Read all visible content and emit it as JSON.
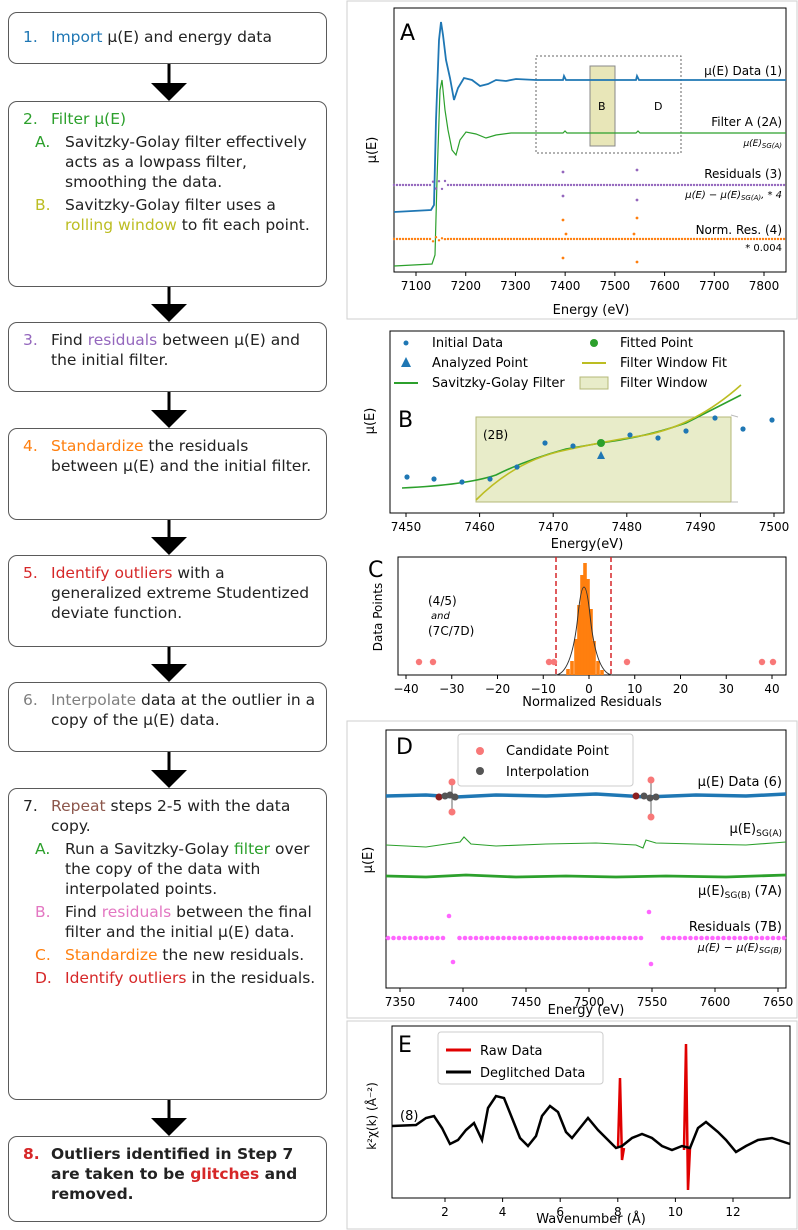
{
  "colors": {
    "blue": "#1f77b4",
    "green": "#2ca02c",
    "purple": "#9467bd",
    "orange": "#ff7f0e",
    "red": "#d62728",
    "olive": "#bcbd22",
    "magenta": "#e377c2",
    "gray": "#7f7f7f",
    "brown": "#8c564b"
  },
  "steps": [
    {
      "num": "1.",
      "parts": [
        {
          "t": "Import",
          "c": "blue"
        },
        {
          "t": " μ(E) and energy data"
        }
      ]
    },
    {
      "num": "2.",
      "parts": [
        {
          "t": "Filter μ(E)",
          "c": "green"
        }
      ],
      "numc": "green",
      "subs": [
        {
          "letter": "A.",
          "lc": "green",
          "parts": [
            {
              "t": "Savitzky-Golay filter effectively acts as a lowpass filter, smoothing the data."
            }
          ]
        },
        {
          "letter": "B.",
          "lc": "olive",
          "parts": [
            {
              "t": "Savitzky-Golay filter uses a "
            },
            {
              "t": "rolling window",
              "c": "olive"
            },
            {
              "t": " to fit each point."
            }
          ]
        }
      ]
    },
    {
      "num": "3.",
      "numc": "purple",
      "parts": [
        {
          "t": "Find "
        },
        {
          "t": "residuals",
          "c": "purple"
        },
        {
          "t": " between μ(E) and the initial filter."
        }
      ]
    },
    {
      "num": "4.",
      "numc": "orange",
      "parts": [
        {
          "t": "Standardize",
          "c": "orange"
        },
        {
          "t": " the residuals between μ(E) and the initial filter."
        }
      ]
    },
    {
      "num": "5.",
      "numc": "red",
      "parts": [
        {
          "t": "Identify outliers",
          "c": "red"
        },
        {
          "t": " with a generalized extreme Studentized deviate function."
        }
      ]
    },
    {
      "num": "6.",
      "numc": "gray",
      "parts": [
        {
          "t": "Interpolate",
          "c": "gray"
        },
        {
          "t": " data at the outlier in a copy of the μ(E) data."
        }
      ]
    },
    {
      "num": "7.",
      "parts": [
        {
          "t": "Repeat",
          "c": "brown"
        },
        {
          "t": " steps 2-5 with the data copy."
        }
      ],
      "subs": [
        {
          "letter": "A.",
          "lc": "green",
          "parts": [
            {
              "t": "Run a Savitzky-Golay "
            },
            {
              "t": "filter",
              "c": "green"
            },
            {
              "t": " over the copy of the data with interpolated points."
            }
          ]
        },
        {
          "letter": "B.",
          "lc": "magenta",
          "parts": [
            {
              "t": "Find "
            },
            {
              "t": "residuals",
              "c": "magenta"
            },
            {
              "t": " between the final filter and the initial μ(E) data."
            }
          ]
        },
        {
          "letter": "C.",
          "lc": "orange",
          "parts": [
            {
              "t": "Standardize",
              "c": "orange"
            },
            {
              "t": " the new residuals."
            }
          ]
        },
        {
          "letter": "D.",
          "lc": "red",
          "parts": [
            {
              "t": "Identify outliers",
              "c": "red"
            },
            {
              "t": " in the residuals."
            }
          ]
        }
      ]
    },
    {
      "num": "8.",
      "numc": "red",
      "bold": true,
      "parts": [
        {
          "t": "Outliers identified in Step 7 are taken to be "
        },
        {
          "t": "glitches",
          "c": "red"
        },
        {
          "t": " and removed."
        }
      ]
    }
  ],
  "panelA": {
    "letter": "A",
    "ylabel": "μ(E)",
    "xlabel": "Energy (eV)",
    "xticks": [
      "7100",
      "7200",
      "7300",
      "7400",
      "7500",
      "7600",
      "7700",
      "7800"
    ],
    "labels": {
      "data": "μ(E) Data (1)",
      "filter": "Filter A (2A)",
      "filter_sub": "μ(E)",
      "filter_sub_s": "SG(A)",
      "resid": "Residuals (3)",
      "resid_sub": "μ(E) − μ(E)",
      "resid_sub_s": "SG(A)",
      "resid_sub_tail": ", * 4",
      "norm": "Norm. Res. (4)",
      "norm_sub": "* 0.004",
      "boxB": "B",
      "boxD": "D"
    }
  },
  "panelB": {
    "letter": "B",
    "ylabel": "μ(E)",
    "xlabel": "Energy(eV)",
    "xticks": [
      "7450",
      "7460",
      "7470",
      "7480",
      "7490",
      "7500"
    ],
    "tag": "(2B)",
    "legend": [
      "Initial Data",
      "Fitted Point",
      "Analyzed Point",
      "Filter Window Fit",
      "Savitzky-Golay Filter",
      "Filter Window"
    ]
  },
  "panelC": {
    "letter": "C",
    "ylabel": "Data Points",
    "xlabel": "Normalized Residuals",
    "xticks": [
      "−40",
      "−30",
      "−20",
      "−10",
      "0",
      "10",
      "20",
      "30",
      "40"
    ],
    "tag1": "(4/5)",
    "tag2": "and",
    "tag3": "(7C/7D)"
  },
  "panelD": {
    "letter": "D",
    "ylabel": "μ(E)",
    "xlabel": "Energy (eV)",
    "xticks": [
      "7350",
      "7400",
      "7450",
      "7500",
      "7550",
      "7600",
      "7650"
    ],
    "legend": [
      "Candidate Point",
      "Interpolation"
    ],
    "labels": {
      "data": "μ(E) Data (6)",
      "sga": "μ(E)",
      "sga_s": "SG(A)",
      "sgb": "μ(E)",
      "sgb_s": "SG(B)",
      "sgb_tail": " (7A)",
      "resid": "Residuals (7B)",
      "resid_sub": "μ(E) − μ(E)",
      "resid_sub_s": "SG(B)"
    }
  },
  "panelE": {
    "letter": "E",
    "ylabel": "k²χ(k) (Å⁻²)",
    "xlabel": "Wavenumber (Å)",
    "xticks": [
      "2",
      "4",
      "6",
      "8",
      "10",
      "12"
    ],
    "tag": "(8)",
    "legend": [
      "Raw Data",
      "Deglitched Data"
    ]
  }
}
